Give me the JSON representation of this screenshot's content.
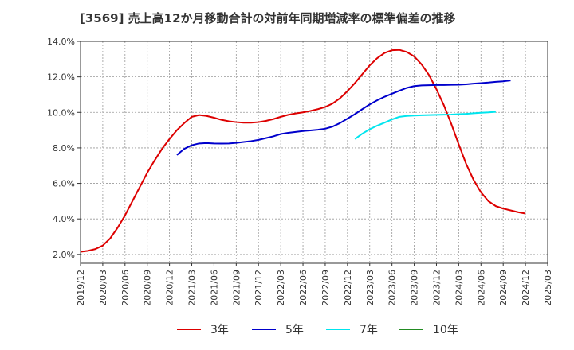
{
  "chart_data": {
    "type": "line",
    "title": "[3569]  売上高12か月移動合計の対前年同期増減率の標準偏差の推移",
    "xlabel": "",
    "ylabel": "",
    "x_ticks": [
      "2019/12",
      "2020/03",
      "2020/06",
      "2020/09",
      "2020/12",
      "2021/03",
      "2021/06",
      "2021/09",
      "2021/12",
      "2022/03",
      "2022/06",
      "2022/09",
      "2022/12",
      "2023/03",
      "2023/06",
      "2023/09",
      "2023/12",
      "2024/03",
      "2024/06",
      "2024/09",
      "2024/12",
      "2025/03"
    ],
    "y_ticks": [
      "2.0%",
      "4.0%",
      "6.0%",
      "8.0%",
      "10.0%",
      "12.0%",
      "14.0%"
    ],
    "ylim": [
      1.5,
      14.0
    ],
    "grid": true,
    "legend_position": "bottom",
    "series": [
      {
        "name": "3年",
        "color": "#dd0000",
        "start": "2019/12",
        "values": [
          2.15,
          2.2,
          2.3,
          2.5,
          2.9,
          3.5,
          4.2,
          5.0,
          5.8,
          6.6,
          7.3,
          7.95,
          8.5,
          9.0,
          9.4,
          9.75,
          9.85,
          9.8,
          9.7,
          9.58,
          9.5,
          9.45,
          9.42,
          9.42,
          9.45,
          9.52,
          9.62,
          9.75,
          9.86,
          9.94,
          10.0,
          10.08,
          10.18,
          10.3,
          10.5,
          10.8,
          11.2,
          11.65,
          12.15,
          12.65,
          13.05,
          13.35,
          13.5,
          13.52,
          13.4,
          13.15,
          12.7,
          12.1,
          11.3,
          10.4,
          9.35,
          8.2,
          7.1,
          6.2,
          5.5,
          5.0,
          4.72,
          4.58,
          4.48,
          4.38,
          4.3
        ]
      },
      {
        "name": "5年",
        "color": "#0000cc",
        "start": "2021/01",
        "values": [
          7.6,
          7.95,
          8.15,
          8.25,
          8.27,
          8.25,
          8.24,
          8.25,
          8.28,
          8.33,
          8.38,
          8.45,
          8.55,
          8.65,
          8.78,
          8.85,
          8.9,
          8.95,
          8.98,
          9.02,
          9.08,
          9.2,
          9.4,
          9.65,
          9.9,
          10.18,
          10.45,
          10.68,
          10.88,
          11.05,
          11.22,
          11.38,
          11.48,
          11.52,
          11.53,
          11.54,
          11.54,
          11.55,
          11.56,
          11.58,
          11.62,
          11.65,
          11.68,
          11.72,
          11.75,
          11.8
        ]
      },
      {
        "name": "7年",
        "color": "#00e5ee",
        "start": "2023/01",
        "values": [
          8.5,
          8.8,
          9.05,
          9.25,
          9.42,
          9.6,
          9.75,
          9.8,
          9.82,
          9.84,
          9.85,
          9.86,
          9.87,
          9.88,
          9.9,
          9.92,
          9.95,
          9.98,
          10.0,
          10.03
        ]
      },
      {
        "name": "10年",
        "color": "#228b22",
        "start": "",
        "values": []
      }
    ]
  }
}
